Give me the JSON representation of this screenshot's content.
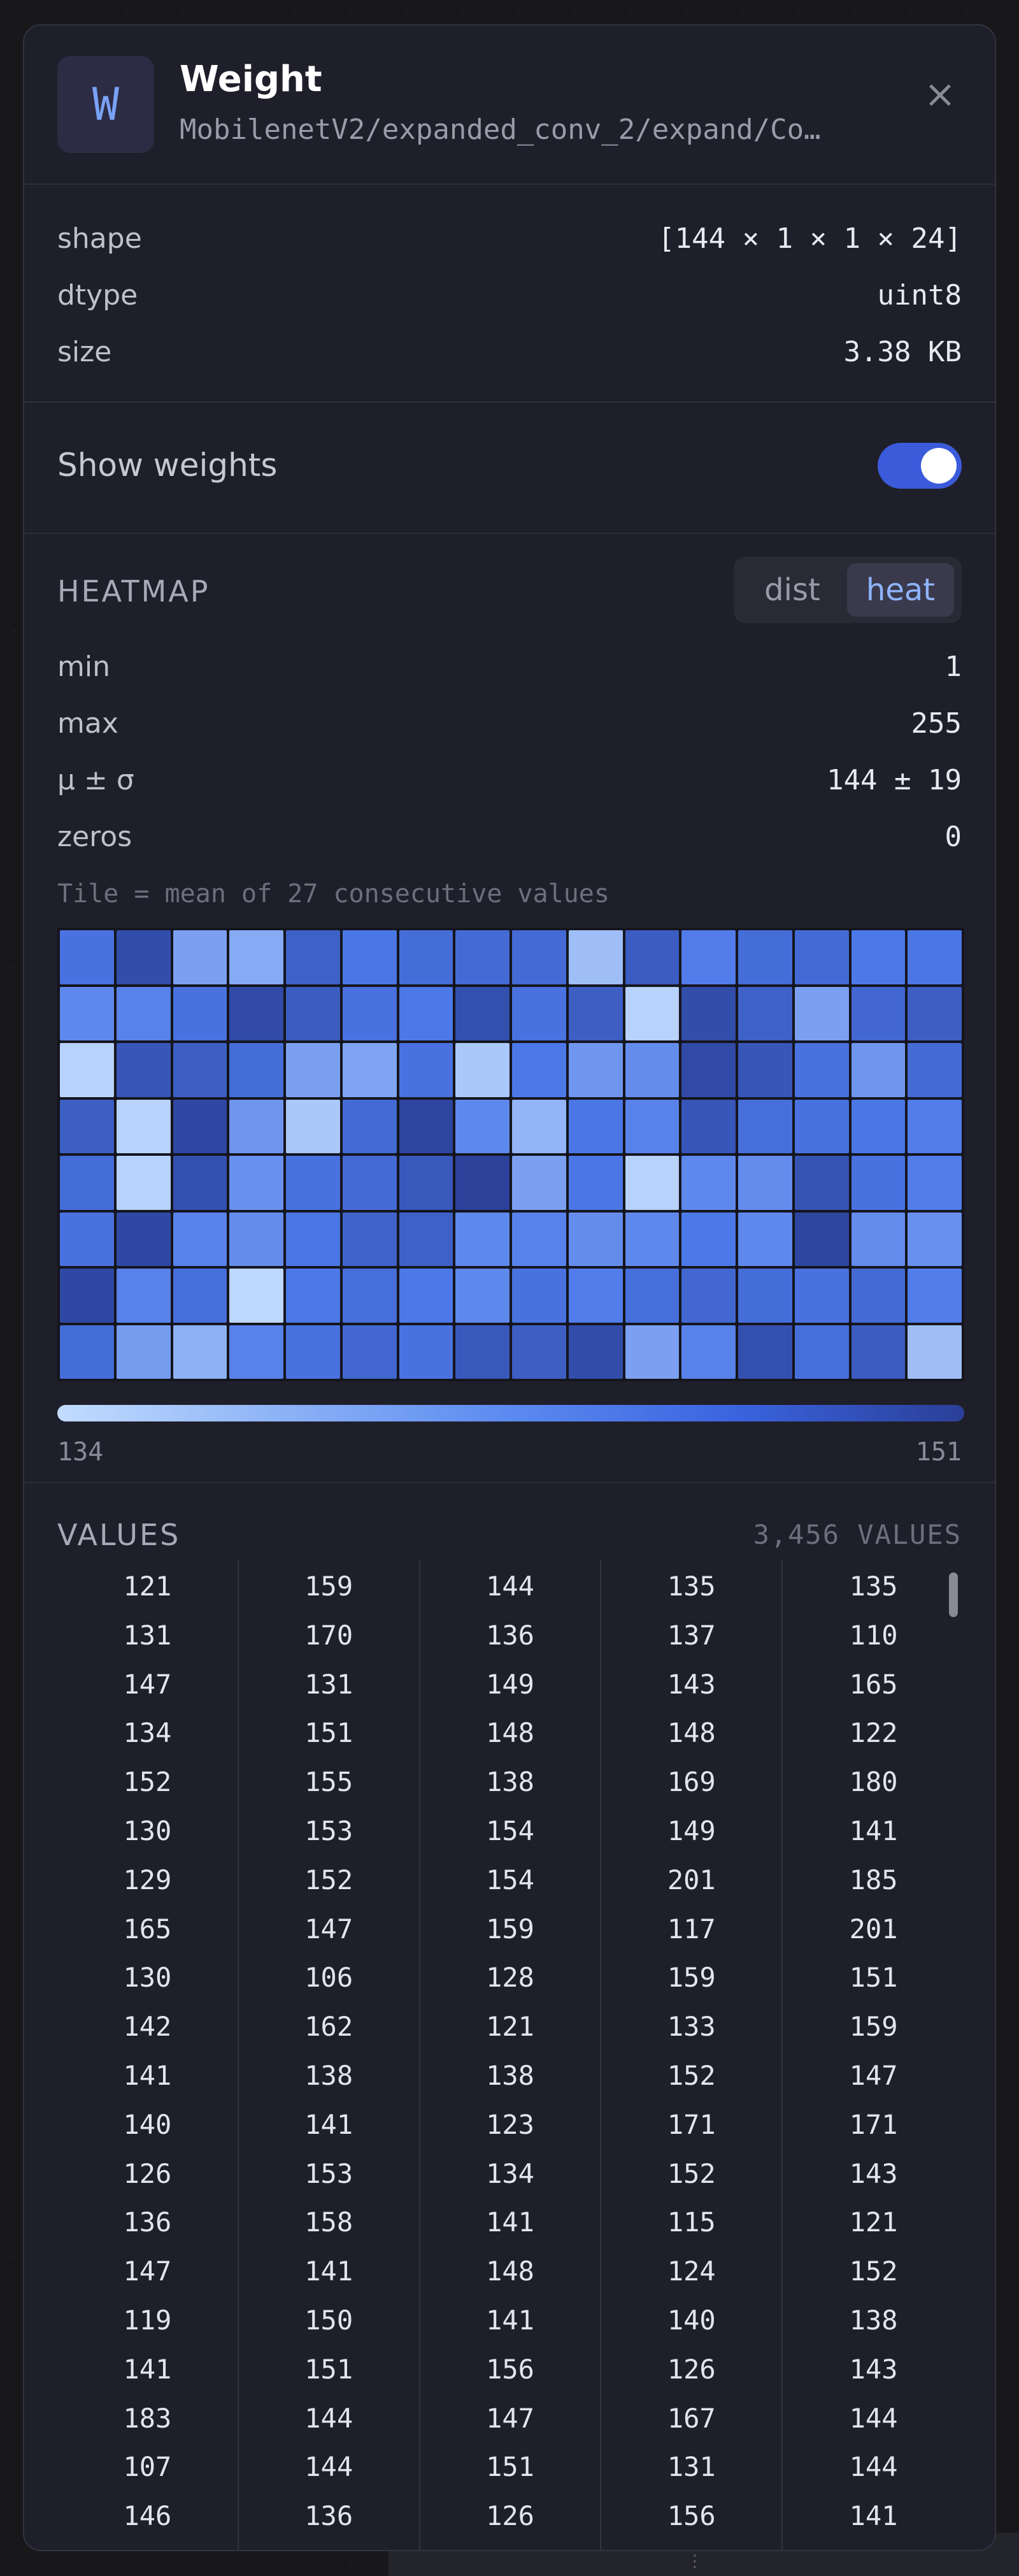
{
  "panel": {
    "avatar_letter": "W",
    "title": "Weight",
    "subtitle": "MobilenetV2/expanded_conv_2/expand/Co…",
    "close_glyph": "×"
  },
  "meta": {
    "shape_label": "shape",
    "shape_value": "[144 × 1 × 1 × 24]",
    "dtype_label": "dtype",
    "dtype_value": "uint8",
    "size_label": "size",
    "size_value": "3.38 KB"
  },
  "toggle": {
    "label": "Show weights",
    "on": true,
    "accent": "#3b5bdb"
  },
  "heatmap": {
    "title": "HEATMAP",
    "mode_dist": "dist",
    "mode_heat": "heat",
    "selected_mode": "heat",
    "stats": [
      {
        "label": "min",
        "value": "1"
      },
      {
        "label": "max",
        "value": "255"
      },
      {
        "label": "μ ± σ",
        "value": "144 ± 19"
      },
      {
        "label": "zeros",
        "value": "0"
      }
    ],
    "caption": "Tile = mean of 27 consecutive values",
    "scale_min": "134",
    "scale_max": "151",
    "color_low": "#c2dcff",
    "color_high": "#2a3f97",
    "cells": [
      [
        0.55,
        0.88,
        0.3,
        0.25,
        0.7,
        0.52,
        0.6,
        0.62,
        0.62,
        0.15,
        0.75,
        0.48,
        0.6,
        0.62,
        0.5,
        0.52
      ],
      [
        0.42,
        0.45,
        0.55,
        0.9,
        0.75,
        0.55,
        0.5,
        0.85,
        0.55,
        0.72,
        0.05,
        0.88,
        0.7,
        0.3,
        0.65,
        0.72
      ],
      [
        0.05,
        0.8,
        0.72,
        0.6,
        0.3,
        0.28,
        0.55,
        0.1,
        0.5,
        0.35,
        0.4,
        0.9,
        0.8,
        0.55,
        0.35,
        0.62
      ],
      [
        0.72,
        0.05,
        0.92,
        0.35,
        0.1,
        0.62,
        0.95,
        0.42,
        0.2,
        0.52,
        0.45,
        0.8,
        0.58,
        0.55,
        0.52,
        0.48
      ],
      [
        0.6,
        0.05,
        0.85,
        0.38,
        0.55,
        0.62,
        0.78,
        0.98,
        0.3,
        0.52,
        0.05,
        0.42,
        0.4,
        0.82,
        0.55,
        0.48
      ],
      [
        0.55,
        0.92,
        0.45,
        0.4,
        0.52,
        0.68,
        0.7,
        0.42,
        0.45,
        0.4,
        0.42,
        0.5,
        0.42,
        0.95,
        0.4,
        0.38
      ],
      [
        0.92,
        0.45,
        0.58,
        0.02,
        0.5,
        0.58,
        0.5,
        0.42,
        0.55,
        0.48,
        0.58,
        0.65,
        0.6,
        0.55,
        0.62,
        0.48
      ],
      [
        0.6,
        0.32,
        0.22,
        0.45,
        0.55,
        0.65,
        0.55,
        0.78,
        0.72,
        0.88,
        0.3,
        0.45,
        0.85,
        0.58,
        0.75,
        0.15
      ]
    ]
  },
  "values": {
    "title": "VALUES",
    "count": "3,456 VALUES",
    "columns": [
      [
        "121",
        "131",
        "147",
        "134",
        "152",
        "130",
        "129",
        "165",
        "130",
        "142",
        "141",
        "140",
        "126",
        "136",
        "147",
        "119",
        "141",
        "183",
        "107",
        "146"
      ],
      [
        "159",
        "170",
        "131",
        "151",
        "155",
        "153",
        "152",
        "147",
        "106",
        "162",
        "138",
        "141",
        "153",
        "158",
        "141",
        "150",
        "151",
        "144",
        "144",
        "136"
      ],
      [
        "144",
        "136",
        "149",
        "148",
        "138",
        "154",
        "154",
        "159",
        "128",
        "121",
        "138",
        "123",
        "134",
        "141",
        "148",
        "141",
        "156",
        "147",
        "151",
        "126"
      ],
      [
        "135",
        "137",
        "143",
        "148",
        "169",
        "149",
        "201",
        "117",
        "159",
        "133",
        "152",
        "171",
        "152",
        "115",
        "124",
        "140",
        "126",
        "167",
        "131",
        "156"
      ],
      [
        "135",
        "110",
        "165",
        "122",
        "180",
        "141",
        "185",
        "201",
        "151",
        "159",
        "147",
        "171",
        "143",
        "121",
        "152",
        "138",
        "143",
        "144",
        "144",
        "141"
      ]
    ]
  }
}
